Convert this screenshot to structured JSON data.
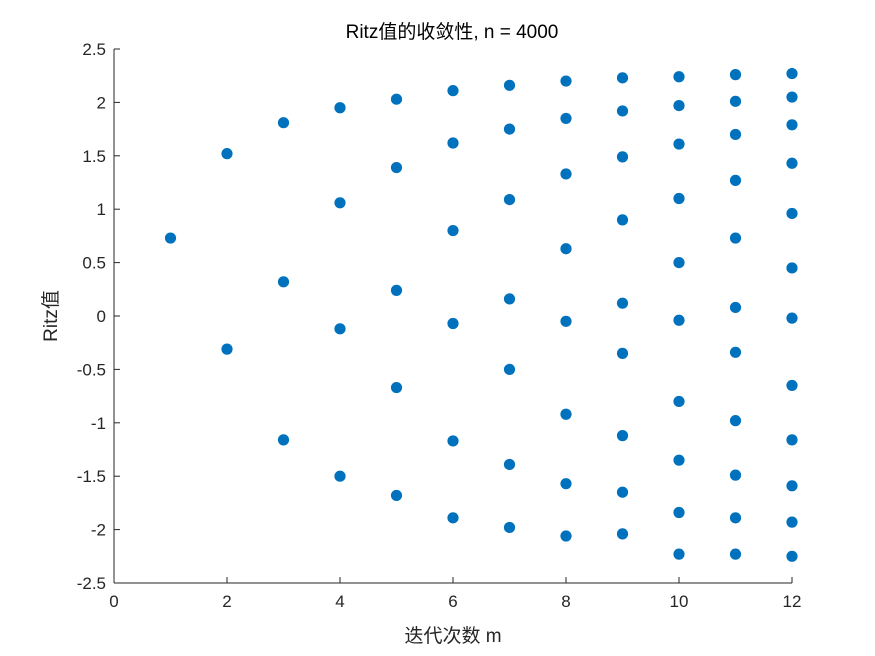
{
  "chart_data": {
    "type": "scatter",
    "title": "Ritz值的收敛性, n = 4000",
    "xlabel": "迭代次数 m",
    "ylabel": "Ritz值",
    "xlim": [
      0,
      12
    ],
    "ylim": [
      -2.5,
      2.5
    ],
    "xticks": [
      0,
      2,
      4,
      6,
      8,
      10,
      12
    ],
    "yticks": [
      -2.5,
      -2,
      -1.5,
      -1,
      -0.5,
      0,
      0.5,
      1,
      1.5,
      2,
      2.5
    ],
    "xtick_labels": [
      "0",
      "2",
      "4",
      "6",
      "8",
      "10",
      "12"
    ],
    "ytick_labels": [
      "-2.5",
      "-2",
      "-1.5",
      "-1",
      "-0.5",
      "0",
      "0.5",
      "1",
      "1.5",
      "2",
      "2.5"
    ],
    "grid": false,
    "marker_color": "#0072BD",
    "points": [
      {
        "x": 1,
        "y": 0.73
      },
      {
        "x": 2,
        "y": 1.52
      },
      {
        "x": 2,
        "y": -0.31
      },
      {
        "x": 3,
        "y": 1.81
      },
      {
        "x": 3,
        "y": 0.32
      },
      {
        "x": 3,
        "y": -1.16
      },
      {
        "x": 4,
        "y": 1.95
      },
      {
        "x": 4,
        "y": 1.06
      },
      {
        "x": 4,
        "y": -0.12
      },
      {
        "x": 4,
        "y": -1.5
      },
      {
        "x": 5,
        "y": 2.03
      },
      {
        "x": 5,
        "y": 1.39
      },
      {
        "x": 5,
        "y": 0.24
      },
      {
        "x": 5,
        "y": -0.67
      },
      {
        "x": 5,
        "y": -1.68
      },
      {
        "x": 6,
        "y": 2.11
      },
      {
        "x": 6,
        "y": 1.62
      },
      {
        "x": 6,
        "y": 0.8
      },
      {
        "x": 6,
        "y": -0.07
      },
      {
        "x": 6,
        "y": -1.17
      },
      {
        "x": 6,
        "y": -1.89
      },
      {
        "x": 7,
        "y": 2.16
      },
      {
        "x": 7,
        "y": 1.75
      },
      {
        "x": 7,
        "y": 1.09
      },
      {
        "x": 7,
        "y": 0.16
      },
      {
        "x": 7,
        "y": -0.5
      },
      {
        "x": 7,
        "y": -1.39
      },
      {
        "x": 7,
        "y": -1.98
      },
      {
        "x": 8,
        "y": 2.2
      },
      {
        "x": 8,
        "y": 1.85
      },
      {
        "x": 8,
        "y": 1.33
      },
      {
        "x": 8,
        "y": 0.63
      },
      {
        "x": 8,
        "y": -0.05
      },
      {
        "x": 8,
        "y": -0.92
      },
      {
        "x": 8,
        "y": -1.57
      },
      {
        "x": 8,
        "y": -2.06
      },
      {
        "x": 9,
        "y": 2.23
      },
      {
        "x": 9,
        "y": 1.92
      },
      {
        "x": 9,
        "y": 1.49
      },
      {
        "x": 9,
        "y": 0.9
      },
      {
        "x": 9,
        "y": 0.12
      },
      {
        "x": 9,
        "y": -0.35
      },
      {
        "x": 9,
        "y": -1.12
      },
      {
        "x": 9,
        "y": -1.65
      },
      {
        "x": 9,
        "y": -2.04
      },
      {
        "x": 10,
        "y": 2.24
      },
      {
        "x": 10,
        "y": 1.97
      },
      {
        "x": 10,
        "y": 1.61
      },
      {
        "x": 10,
        "y": 1.1
      },
      {
        "x": 10,
        "y": 0.5
      },
      {
        "x": 10,
        "y": -0.04
      },
      {
        "x": 10,
        "y": -0.8
      },
      {
        "x": 10,
        "y": -1.35
      },
      {
        "x": 10,
        "y": -1.84
      },
      {
        "x": 10,
        "y": -2.23
      },
      {
        "x": 11,
        "y": 2.26
      },
      {
        "x": 11,
        "y": 2.01
      },
      {
        "x": 11,
        "y": 1.7
      },
      {
        "x": 11,
        "y": 1.27
      },
      {
        "x": 11,
        "y": 0.73
      },
      {
        "x": 11,
        "y": 0.08
      },
      {
        "x": 11,
        "y": -0.34
      },
      {
        "x": 11,
        "y": -0.98
      },
      {
        "x": 11,
        "y": -1.49
      },
      {
        "x": 11,
        "y": -1.89
      },
      {
        "x": 11,
        "y": -2.23
      },
      {
        "x": 12,
        "y": 2.27
      },
      {
        "x": 12,
        "y": 2.05
      },
      {
        "x": 12,
        "y": 1.79
      },
      {
        "x": 12,
        "y": 1.43
      },
      {
        "x": 12,
        "y": 0.96
      },
      {
        "x": 12,
        "y": 0.45
      },
      {
        "x": 12,
        "y": -0.02
      },
      {
        "x": 12,
        "y": -0.65
      },
      {
        "x": 12,
        "y": -1.16
      },
      {
        "x": 12,
        "y": -1.59
      },
      {
        "x": 12,
        "y": -1.93
      },
      {
        "x": 12,
        "y": -2.25
      }
    ]
  }
}
